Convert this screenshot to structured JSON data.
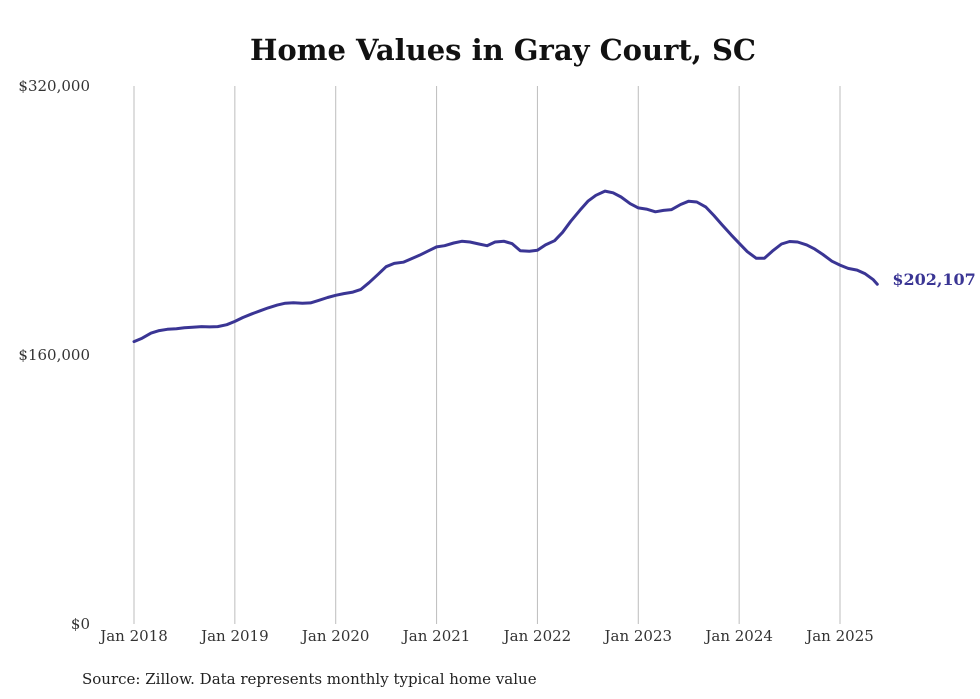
{
  "chart_data": {
    "type": "line",
    "title": "Home Values in Gray Court, SC",
    "xlabel": "",
    "ylabel": "",
    "ylim": [
      0,
      320000
    ],
    "yticks": [
      {
        "value": 0,
        "label": "$0"
      },
      {
        "value": 160000,
        "label": "$160,000"
      },
      {
        "value": 320000,
        "label": "$320,000"
      }
    ],
    "xticks": [
      {
        "value": 2018,
        "label": "Jan 2018"
      },
      {
        "value": 2019,
        "label": "Jan 2019"
      },
      {
        "value": 2020,
        "label": "Jan 2020"
      },
      {
        "value": 2021,
        "label": "Jan 2021"
      },
      {
        "value": 2022,
        "label": "Jan 2022"
      },
      {
        "value": 2023,
        "label": "Jan 2023"
      },
      {
        "value": 2024,
        "label": "Jan 2024"
      },
      {
        "value": 2025,
        "label": "Jan 2025"
      }
    ],
    "grid": "vertical",
    "series": [
      {
        "color": "#3a3594",
        "end_label": "$202,107",
        "points": [
          [
            2018.0,
            168000
          ],
          [
            2018.08,
            170000
          ],
          [
            2018.17,
            173000
          ],
          [
            2018.25,
            174500
          ],
          [
            2018.33,
            175300
          ],
          [
            2018.42,
            175600
          ],
          [
            2018.5,
            176200
          ],
          [
            2018.58,
            176500
          ],
          [
            2018.67,
            176900
          ],
          [
            2018.75,
            176700
          ],
          [
            2018.83,
            176900
          ],
          [
            2018.92,
            178000
          ],
          [
            2019.0,
            180000
          ],
          [
            2019.08,
            182300
          ],
          [
            2019.17,
            184500
          ],
          [
            2019.25,
            186300
          ],
          [
            2019.33,
            188000
          ],
          [
            2019.42,
            189700
          ],
          [
            2019.5,
            190800
          ],
          [
            2019.58,
            191100
          ],
          [
            2019.67,
            190800
          ],
          [
            2019.75,
            191000
          ],
          [
            2019.83,
            192500
          ],
          [
            2019.92,
            194200
          ],
          [
            2020.0,
            195500
          ],
          [
            2020.08,
            196500
          ],
          [
            2020.17,
            197400
          ],
          [
            2020.25,
            199000
          ],
          [
            2020.33,
            203000
          ],
          [
            2020.42,
            208000
          ],
          [
            2020.5,
            212500
          ],
          [
            2020.58,
            214500
          ],
          [
            2020.67,
            215200
          ],
          [
            2020.75,
            217300
          ],
          [
            2020.83,
            219300
          ],
          [
            2020.92,
            222000
          ],
          [
            2021.0,
            224300
          ],
          [
            2021.08,
            225000
          ],
          [
            2021.17,
            226600
          ],
          [
            2021.25,
            227600
          ],
          [
            2021.33,
            227200
          ],
          [
            2021.42,
            226000
          ],
          [
            2021.5,
            225000
          ],
          [
            2021.58,
            227200
          ],
          [
            2021.67,
            227600
          ],
          [
            2021.75,
            226200
          ],
          [
            2021.83,
            222000
          ],
          [
            2021.92,
            221700
          ],
          [
            2022.0,
            222300
          ],
          [
            2022.08,
            225500
          ],
          [
            2022.17,
            228000
          ],
          [
            2022.25,
            233000
          ],
          [
            2022.33,
            239500
          ],
          [
            2022.42,
            246000
          ],
          [
            2022.5,
            251500
          ],
          [
            2022.58,
            255000
          ],
          [
            2022.67,
            257500
          ],
          [
            2022.75,
            256500
          ],
          [
            2022.83,
            254000
          ],
          [
            2022.92,
            250000
          ],
          [
            2023.0,
            247500
          ],
          [
            2023.08,
            246800
          ],
          [
            2023.17,
            245200
          ],
          [
            2023.25,
            246000
          ],
          [
            2023.33,
            246500
          ],
          [
            2023.42,
            249500
          ],
          [
            2023.5,
            251500
          ],
          [
            2023.58,
            251000
          ],
          [
            2023.67,
            248000
          ],
          [
            2023.75,
            243000
          ],
          [
            2023.83,
            237500
          ],
          [
            2023.92,
            231500
          ],
          [
            2024.0,
            226500
          ],
          [
            2024.08,
            221500
          ],
          [
            2024.17,
            217500
          ],
          [
            2024.25,
            217500
          ],
          [
            2024.33,
            221800
          ],
          [
            2024.42,
            226000
          ],
          [
            2024.5,
            227500
          ],
          [
            2024.58,
            227200
          ],
          [
            2024.67,
            225500
          ],
          [
            2024.75,
            223000
          ],
          [
            2024.83,
            219800
          ],
          [
            2024.92,
            215800
          ],
          [
            2025.0,
            213500
          ],
          [
            2025.08,
            211500
          ],
          [
            2025.17,
            210500
          ],
          [
            2025.25,
            208300
          ],
          [
            2025.33,
            204800
          ],
          [
            2025.37,
            202107
          ]
        ]
      }
    ],
    "annotations": [
      "Source: Zillow. Data represents monthly typical home value"
    ]
  }
}
